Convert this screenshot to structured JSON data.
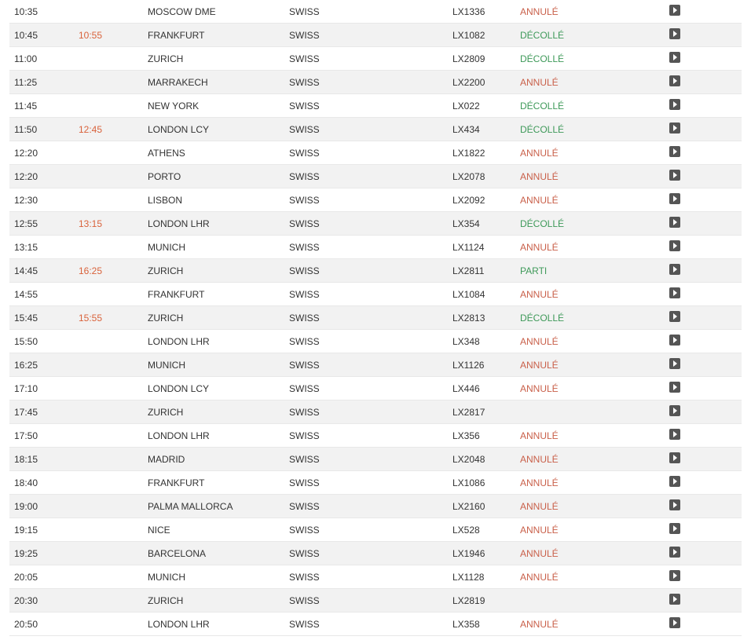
{
  "colors": {
    "status_annule": "#c9604a",
    "status_decolle": "#3f9a5a",
    "status_parti": "#3f9a5a",
    "revised_time": "#d9623b",
    "row_even": "#f2f2f2",
    "row_odd": "#ffffff",
    "text": "#333333",
    "icon_bg": "#555555"
  },
  "flights": [
    {
      "time": "10:35",
      "revised": "",
      "dest": "MOSCOW DME",
      "airline": "SWISS",
      "flight": "LX1336",
      "status": "ANNULÉ",
      "status_kind": "annule"
    },
    {
      "time": "10:45",
      "revised": "10:55",
      "dest": "FRANKFURT",
      "airline": "SWISS",
      "flight": "LX1082",
      "status": "DÉCOLLÉ",
      "status_kind": "decolle"
    },
    {
      "time": "11:00",
      "revised": "",
      "dest": "ZURICH",
      "airline": "SWISS",
      "flight": "LX2809",
      "status": "DÉCOLLÉ",
      "status_kind": "decolle"
    },
    {
      "time": "11:25",
      "revised": "",
      "dest": "MARRAKECH",
      "airline": "SWISS",
      "flight": "LX2200",
      "status": "ANNULÉ",
      "status_kind": "annule"
    },
    {
      "time": "11:45",
      "revised": "",
      "dest": "NEW YORK",
      "airline": "SWISS",
      "flight": "LX022",
      "status": "DÉCOLLÉ",
      "status_kind": "decolle"
    },
    {
      "time": "11:50",
      "revised": "12:45",
      "dest": "LONDON LCY",
      "airline": "SWISS",
      "flight": "LX434",
      "status": "DÉCOLLÉ",
      "status_kind": "decolle"
    },
    {
      "time": "12:20",
      "revised": "",
      "dest": "ATHENS",
      "airline": "SWISS",
      "flight": "LX1822",
      "status": "ANNULÉ",
      "status_kind": "annule"
    },
    {
      "time": "12:20",
      "revised": "",
      "dest": "PORTO",
      "airline": "SWISS",
      "flight": "LX2078",
      "status": "ANNULÉ",
      "status_kind": "annule"
    },
    {
      "time": "12:30",
      "revised": "",
      "dest": "LISBON",
      "airline": "SWISS",
      "flight": "LX2092",
      "status": "ANNULÉ",
      "status_kind": "annule"
    },
    {
      "time": "12:55",
      "revised": "13:15",
      "dest": "LONDON LHR",
      "airline": "SWISS",
      "flight": "LX354",
      "status": "DÉCOLLÉ",
      "status_kind": "decolle"
    },
    {
      "time": "13:15",
      "revised": "",
      "dest": "MUNICH",
      "airline": "SWISS",
      "flight": "LX1124",
      "status": "ANNULÉ",
      "status_kind": "annule"
    },
    {
      "time": "14:45",
      "revised": "16:25",
      "dest": "ZURICH",
      "airline": "SWISS",
      "flight": "LX2811",
      "status": "PARTI",
      "status_kind": "parti"
    },
    {
      "time": "14:55",
      "revised": "",
      "dest": "FRANKFURT",
      "airline": "SWISS",
      "flight": "LX1084",
      "status": "ANNULÉ",
      "status_kind": "annule"
    },
    {
      "time": "15:45",
      "revised": "15:55",
      "dest": "ZURICH",
      "airline": "SWISS",
      "flight": "LX2813",
      "status": "DÉCOLLÉ",
      "status_kind": "decolle"
    },
    {
      "time": "15:50",
      "revised": "",
      "dest": "LONDON LHR",
      "airline": "SWISS",
      "flight": "LX348",
      "status": "ANNULÉ",
      "status_kind": "annule"
    },
    {
      "time": "16:25",
      "revised": "",
      "dest": "MUNICH",
      "airline": "SWISS",
      "flight": "LX1126",
      "status": "ANNULÉ",
      "status_kind": "annule"
    },
    {
      "time": "17:10",
      "revised": "",
      "dest": "LONDON LCY",
      "airline": "SWISS",
      "flight": "LX446",
      "status": "ANNULÉ",
      "status_kind": "annule"
    },
    {
      "time": "17:45",
      "revised": "",
      "dest": "ZURICH",
      "airline": "SWISS",
      "flight": "LX2817",
      "status": "",
      "status_kind": ""
    },
    {
      "time": "17:50",
      "revised": "",
      "dest": "LONDON LHR",
      "airline": "SWISS",
      "flight": "LX356",
      "status": "ANNULÉ",
      "status_kind": "annule"
    },
    {
      "time": "18:15",
      "revised": "",
      "dest": "MADRID",
      "airline": "SWISS",
      "flight": "LX2048",
      "status": "ANNULÉ",
      "status_kind": "annule"
    },
    {
      "time": "18:40",
      "revised": "",
      "dest": "FRANKFURT",
      "airline": "SWISS",
      "flight": "LX1086",
      "status": "ANNULÉ",
      "status_kind": "annule"
    },
    {
      "time": "19:00",
      "revised": "",
      "dest": "PALMA MALLORCA",
      "airline": "SWISS",
      "flight": "LX2160",
      "status": "ANNULÉ",
      "status_kind": "annule"
    },
    {
      "time": "19:15",
      "revised": "",
      "dest": "NICE",
      "airline": "SWISS",
      "flight": "LX528",
      "status": "ANNULÉ",
      "status_kind": "annule"
    },
    {
      "time": "19:25",
      "revised": "",
      "dest": "BARCELONA",
      "airline": "SWISS",
      "flight": "LX1946",
      "status": "ANNULÉ",
      "status_kind": "annule"
    },
    {
      "time": "20:05",
      "revised": "",
      "dest": "MUNICH",
      "airline": "SWISS",
      "flight": "LX1128",
      "status": "ANNULÉ",
      "status_kind": "annule"
    },
    {
      "time": "20:30",
      "revised": "",
      "dest": "ZURICH",
      "airline": "SWISS",
      "flight": "LX2819",
      "status": "",
      "status_kind": ""
    },
    {
      "time": "20:50",
      "revised": "",
      "dest": "LONDON LHR",
      "airline": "SWISS",
      "flight": "LX358",
      "status": "ANNULÉ",
      "status_kind": "annule"
    }
  ]
}
